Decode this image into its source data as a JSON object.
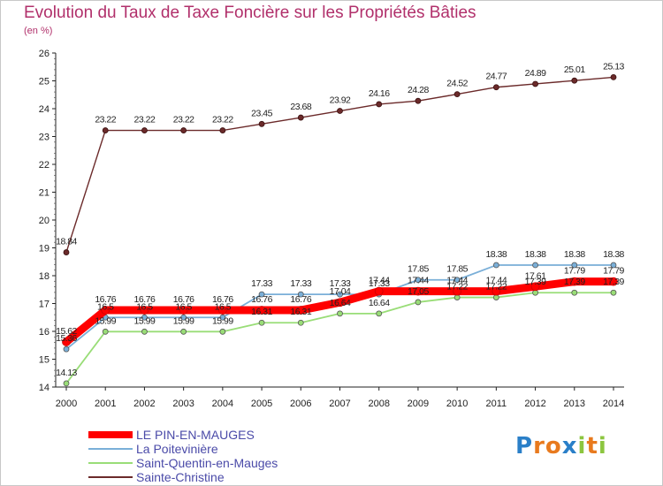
{
  "title": "Evolution du Taux de Taxe Foncière sur les Propriétés Bâties",
  "subtitle": "(en %)",
  "logo": {
    "text": "Proxiti",
    "letters": [
      {
        "char": "P",
        "color": "#2a7fc8"
      },
      {
        "char": "r",
        "color": "#e87a1e"
      },
      {
        "char": "o",
        "color": "#e87a1e"
      },
      {
        "char": "x",
        "color": "#2a7fc8"
      },
      {
        "char": "i",
        "color": "#8cc63f"
      },
      {
        "char": "t",
        "color": "#e87a1e"
      },
      {
        "char": "i",
        "color": "#8cc63f"
      }
    ]
  },
  "chart_data": {
    "type": "line",
    "title": "Evolution du Taux de Taxe Foncière sur les Propriétés Bâties",
    "ylabel": "(en %)",
    "xlabel": "",
    "x": [
      2000,
      2001,
      2002,
      2003,
      2004,
      2005,
      2006,
      2007,
      2008,
      2009,
      2010,
      2011,
      2012,
      2013,
      2014
    ],
    "ylim": [
      14,
      26
    ],
    "yticks": [
      14,
      15,
      16,
      17,
      18,
      19,
      20,
      21,
      22,
      23,
      24,
      25,
      26
    ],
    "grid": false,
    "legend": "bottom-left",
    "series": [
      {
        "name": "LE PIN-EN-MAUGES",
        "color": "#ff0000",
        "values": [
          15.62,
          16.76,
          16.76,
          16.76,
          16.76,
          16.76,
          16.76,
          17.04,
          17.44,
          17.44,
          17.44,
          17.44,
          17.61,
          17.79,
          17.79
        ],
        "labels": [
          "15.62",
          "16.76",
          "16.76",
          "16.76",
          "16.76",
          "16.76",
          "16.76",
          "17.04",
          "17.44",
          "17.44",
          "17.44",
          "17.44",
          "17.61",
          "17.79",
          "17.79"
        ]
      },
      {
        "name": "La Poitevinière",
        "color": "#7aafd8",
        "values": [
          15.36,
          16.5,
          16.5,
          16.5,
          16.5,
          17.33,
          17.33,
          17.33,
          17.33,
          17.85,
          17.85,
          18.38,
          18.38,
          18.38,
          18.38
        ],
        "labels": [
          "15.36",
          "16.5",
          "16.5",
          "16.5",
          "16.5",
          "17.33",
          "17.33",
          "17.33",
          "17.33",
          "17.85",
          "17.85",
          "18.38",
          "18.38",
          "18.38",
          "18.38"
        ]
      },
      {
        "name": "Saint-Quentin-en-Mauges",
        "color": "#99dd77",
        "values": [
          14.13,
          15.99,
          15.99,
          15.99,
          15.99,
          16.31,
          16.31,
          16.64,
          16.64,
          17.05,
          17.22,
          17.22,
          17.39,
          17.39,
          17.39
        ],
        "labels": [
          "14.13",
          "15.99",
          "15.99",
          "15.99",
          "15.99",
          "16.31",
          "16.31",
          "16.64",
          "16.64",
          "17.05",
          "17.22",
          "17.22",
          "17.39",
          "17.39",
          "17.39"
        ]
      },
      {
        "name": "Sainte-Christine",
        "color": "#6b2a2a",
        "values": [
          18.84,
          23.22,
          23.22,
          23.22,
          23.22,
          23.45,
          23.68,
          23.92,
          24.16,
          24.28,
          24.52,
          24.77,
          24.89,
          25.01,
          25.13
        ],
        "labels": [
          "18.84",
          "23.22",
          "23.22",
          "23.22",
          "23.22",
          "23.45",
          "23.68",
          "23.92",
          "24.16",
          "24.28",
          "24.52",
          "24.77",
          "24.89",
          "25.01",
          "25.13"
        ]
      }
    ]
  }
}
